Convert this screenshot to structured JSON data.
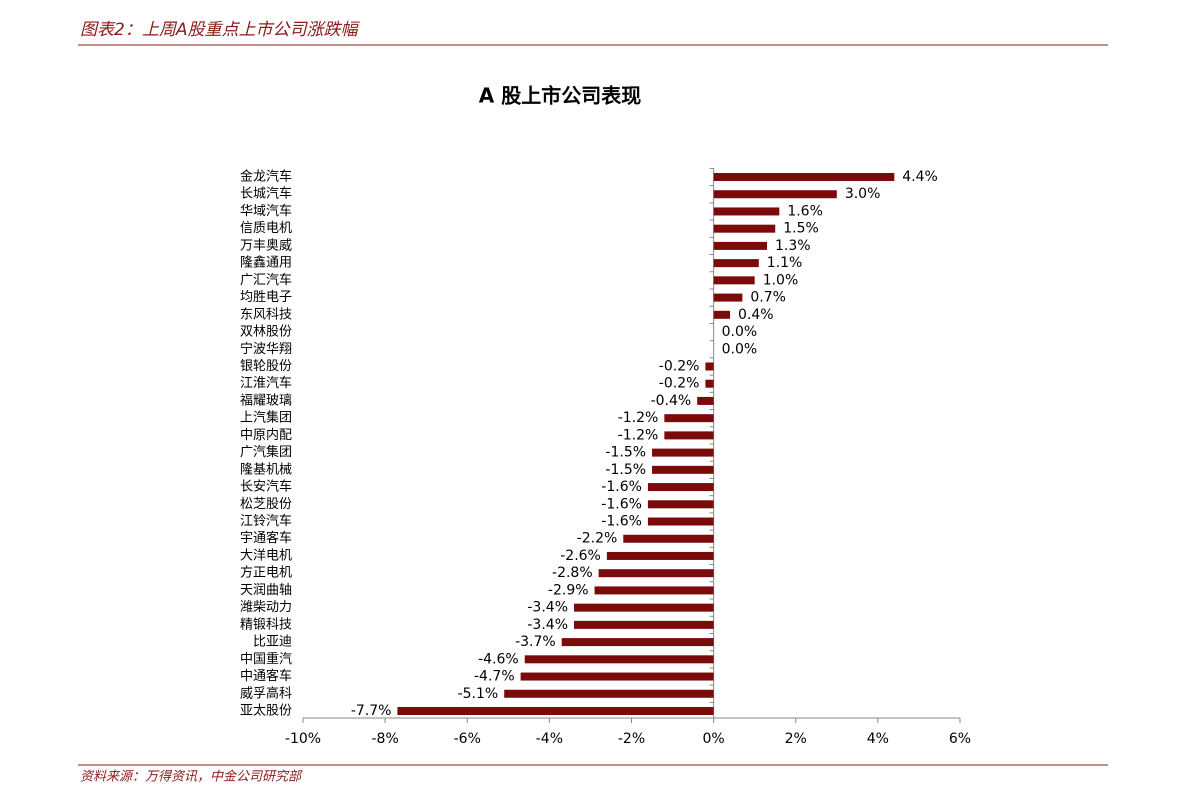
{
  "header": {
    "title": "图表2：上周A股重点上市公司涨跌幅"
  },
  "chart_data": {
    "type": "hbar",
    "title": "A 股上市公司表现",
    "color": "#7b0a0a",
    "categories": [
      "金龙汽车",
      "长城汽车",
      "华域汽车",
      "信质电机",
      "万丰奥威",
      "隆鑫通用",
      "广汇汽车",
      "均胜电子",
      "东风科技",
      "双林股份",
      "宁波华翔",
      "银轮股份",
      "江淮汽车",
      "福耀玻璃",
      "上汽集团",
      "中原内配",
      "广汽集团",
      "隆基机械",
      "长安汽车",
      "松芝股份",
      "江铃汽车",
      "宇通客车",
      "大洋电机",
      "方正电机",
      "天润曲轴",
      "潍柴动力",
      "精锻科技",
      "比亚迪",
      "中国重汽",
      "中通客车",
      "威孚高科",
      "亚太股份"
    ],
    "values": [
      4.4,
      3.0,
      1.6,
      1.5,
      1.3,
      1.1,
      1.0,
      0.7,
      0.4,
      0.0,
      0.0,
      -0.2,
      -0.2,
      -0.4,
      -1.2,
      -1.2,
      -1.5,
      -1.5,
      -1.6,
      -1.6,
      -1.6,
      -2.2,
      -2.6,
      -2.8,
      -2.9,
      -3.4,
      -3.4,
      -3.7,
      -4.6,
      -4.7,
      -5.1,
      -7.7
    ],
    "value_labels": [
      "4.4%",
      "3.0%",
      "1.6%",
      "1.5%",
      "1.3%",
      "1.1%",
      "1.0%",
      "0.7%",
      "0.4%",
      "0.0%",
      "0.0%",
      "-0.2%",
      "-0.2%",
      "-0.4%",
      "-1.2%",
      "-1.2%",
      "-1.5%",
      "-1.5%",
      "-1.6%",
      "-1.6%",
      "-1.6%",
      "-2.2%",
      "-2.6%",
      "-2.8%",
      "-2.9%",
      "-3.4%",
      "-3.4%",
      "-3.7%",
      "-4.6%",
      "-4.7%",
      "-5.1%",
      "-7.7%"
    ],
    "xlim": [
      -10,
      6
    ],
    "xticks": [
      {
        "value": -10,
        "label": "-10%"
      },
      {
        "value": -8,
        "label": "-8%"
      },
      {
        "value": -6,
        "label": "-6%"
      },
      {
        "value": -4,
        "label": "-4%"
      },
      {
        "value": -2,
        "label": "-2%"
      },
      {
        "value": 0,
        "label": "0%"
      },
      {
        "value": 2,
        "label": "2%"
      },
      {
        "value": 4,
        "label": "4%"
      },
      {
        "value": 6,
        "label": "6%"
      }
    ]
  },
  "footer": {
    "source": "资料来源：万得资讯，中金公司研究部"
  }
}
